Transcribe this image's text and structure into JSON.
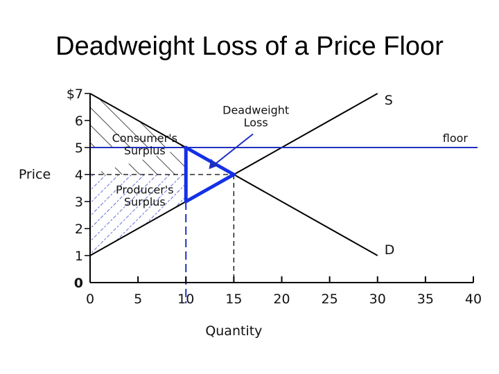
{
  "slide": {
    "title": "Deadweight Loss of a Price Floor"
  },
  "colors": {
    "floor": "#1f2fbf",
    "dwl": "#1430e6",
    "curve": "#000000",
    "producer_hatch": "#1f2fbf"
  },
  "chart_data": {
    "type": "line",
    "title": "Deadweight Loss of a Price Floor",
    "xlabel": "Quantity",
    "ylabel": "Price",
    "xlim": [
      0,
      40
    ],
    "ylim": [
      0,
      7
    ],
    "x_ticks": [
      0,
      5,
      10,
      15,
      20,
      25,
      30,
      35,
      40
    ],
    "y_ticks": [
      {
        "value": 0,
        "label": "0"
      },
      {
        "value": 1,
        "label": "1"
      },
      {
        "value": 2,
        "label": "2"
      },
      {
        "value": 3,
        "label": "3"
      },
      {
        "value": 4,
        "label": "4"
      },
      {
        "value": 5,
        "label": "5"
      },
      {
        "value": 6,
        "label": "6"
      },
      {
        "value": 7,
        "label": "$7"
      }
    ],
    "series": [
      {
        "name": "S",
        "points": [
          [
            0,
            1
          ],
          [
            30,
            7
          ]
        ]
      },
      {
        "name": "D",
        "points": [
          [
            0,
            7
          ],
          [
            30,
            1
          ]
        ]
      },
      {
        "name": "floor",
        "points": [
          [
            0,
            5
          ],
          [
            40,
            5
          ]
        ]
      }
    ],
    "equilibrium": {
      "q": 15,
      "p": 4
    },
    "floor_quantity": 10,
    "deadweight_loss": [
      [
        10,
        5
      ],
      [
        15,
        4
      ],
      [
        10,
        3
      ]
    ],
    "consumer_surplus": [
      [
        0,
        7
      ],
      [
        10,
        5
      ],
      [
        0,
        5
      ]
    ],
    "consumer_surplus_unshaded_rows": [
      [
        0,
        4
      ],
      [
        10,
        5
      ],
      [
        10,
        4
      ]
    ],
    "producer_surplus": [
      [
        0,
        4
      ],
      [
        10,
        4
      ],
      [
        10,
        3
      ],
      [
        0,
        1
      ]
    ],
    "annotations": [
      {
        "text": "Deadweight",
        "x": 17.3,
        "y": 6.25
      },
      {
        "text": "Loss",
        "x": 17.3,
        "y": 5.78
      },
      {
        "text": "Consumer's",
        "x": 5.7,
        "y": 5.2
      },
      {
        "text": "Surplus",
        "x": 5.7,
        "y": 4.75
      },
      {
        "text": "Producer's",
        "x": 5.7,
        "y": 3.3
      },
      {
        "text": "Surplus",
        "x": 5.7,
        "y": 2.85
      }
    ]
  }
}
